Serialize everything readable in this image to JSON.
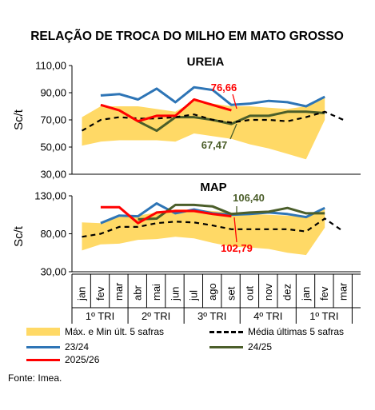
{
  "chart_data": {
    "title": "RELAÇÃO DE TROCA DO MILHO EM MATO GROSSO",
    "type": "line",
    "months": [
      "jan",
      "fev",
      "mar",
      "abr",
      "mai",
      "jun",
      "jul",
      "ago",
      "set",
      "out",
      "nov",
      "dez",
      "jan",
      "fev",
      "mar"
    ],
    "quarters": [
      "1º TRI",
      "2º TRI",
      "3º TRI",
      "4º TRI",
      "1º TRI"
    ],
    "ylabel": "Sc/t",
    "legend": {
      "range": "Máx. e Min últ. 5 safras",
      "avg": "Média últimas 5 safras",
      "s2324": "23/24",
      "s2425": "24/25",
      "s2526": "2025/26"
    },
    "colors": {
      "range": "#FFD966",
      "avg": "#000000",
      "s2324": "#2E75B6",
      "s2425": "#4B5E2A",
      "s2526": "#FF0000",
      "label_red": "#FF0000",
      "label_green": "#4B5E2A"
    },
    "panels": [
      {
        "name": "UREIA",
        "ylim": [
          30,
          110
        ],
        "yticks": [
          "30,00",
          "50,00",
          "70,00",
          "90,00",
          "110,00"
        ],
        "ytick_values": [
          30,
          50,
          70,
          90,
          110
        ],
        "range_max": [
          72,
          80,
          80,
          80,
          78,
          76,
          84,
          82,
          80,
          80,
          79,
          78,
          80,
          86,
          null
        ],
        "range_min": [
          51,
          54,
          55,
          55,
          55,
          54,
          60,
          58,
          56,
          52,
          49,
          45,
          41,
          70,
          null
        ],
        "avg": [
          62,
          70,
          72,
          71,
          71,
          72,
          74,
          70,
          68,
          70,
          70,
          69,
          72,
          76,
          70
        ],
        "series_2324": [
          null,
          88,
          89,
          85,
          93,
          83,
          94,
          92,
          81,
          82,
          84,
          83,
          80,
          87,
          null
        ],
        "series_2425": [
          null,
          null,
          null,
          69,
          62,
          72,
          72,
          70,
          67,
          73,
          73,
          76,
          76,
          75,
          null
        ],
        "series_2526": [
          null,
          81,
          77,
          69,
          73,
          73,
          85,
          81,
          77,
          null,
          null,
          null,
          null,
          null,
          null
        ],
        "annotations": [
          {
            "text": "76,66",
            "color_key": "label_red"
          },
          {
            "text": "67,47",
            "color_key": "label_green"
          }
        ]
      },
      {
        "name": "MAP",
        "ylim": [
          30,
          130
        ],
        "yticks": [
          "30,00",
          "80,00",
          "130,00"
        ],
        "ytick_values": [
          30,
          80,
          130
        ],
        "range_max": [
          95,
          94,
          102,
          104,
          108,
          112,
          112,
          110,
          108,
          106,
          105,
          104,
          102,
          112,
          null
        ],
        "range_min": [
          58,
          66,
          67,
          72,
          73,
          76,
          74,
          68,
          63,
          62,
          60,
          55,
          52,
          88,
          null
        ],
        "avg": [
          76,
          80,
          89,
          89,
          94,
          96,
          95,
          91,
          86,
          86,
          86,
          86,
          83,
          100,
          83
        ],
        "series_2324": [
          null,
          94,
          104,
          103,
          120,
          107,
          112,
          107,
          105,
          106,
          108,
          106,
          102,
          114,
          null
        ],
        "series_2425": [
          null,
          null,
          null,
          99,
          100,
          118,
          118,
          116,
          106,
          108,
          109,
          114,
          107,
          107,
          null
        ],
        "series_2526": [
          null,
          115,
          115,
          94,
          108,
          110,
          110,
          106,
          103,
          null,
          null,
          null,
          null,
          null,
          null
        ],
        "annotations": [
          {
            "text": "106,40",
            "color_key": "label_green"
          },
          {
            "text": "102,79",
            "color_key": "label_red"
          }
        ]
      }
    ]
  },
  "source": "Fonte: Imea."
}
